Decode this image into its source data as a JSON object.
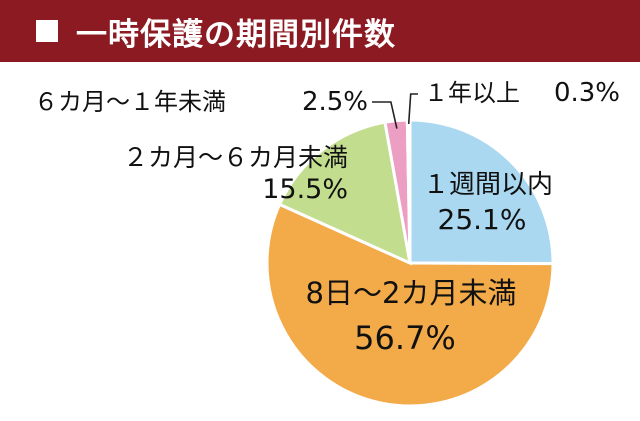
{
  "chart_data": {
    "type": "pie",
    "title": "一時保護の期間別件数",
    "slices": [
      {
        "label": "１週間以内",
        "value": 25.1,
        "value_text": "25.1%",
        "color": "#a9d8f0"
      },
      {
        "label": "8日～2カ月未満",
        "value": 56.7,
        "value_text": "56.7%",
        "color": "#f3ab49"
      },
      {
        "label": "２カ月～６カ月未満",
        "value": 15.5,
        "value_text": "15.5%",
        "color": "#c3dd8f"
      },
      {
        "label": "６カ月～１年未満",
        "value": 2.5,
        "value_text": "2.5%",
        "color": "#ec9ec3"
      },
      {
        "label": "１年以上",
        "value": 0.3,
        "value_text": "0.3%",
        "color": "#222222"
      }
    ],
    "start": "12 o'clock",
    "direction": "clockwise"
  }
}
